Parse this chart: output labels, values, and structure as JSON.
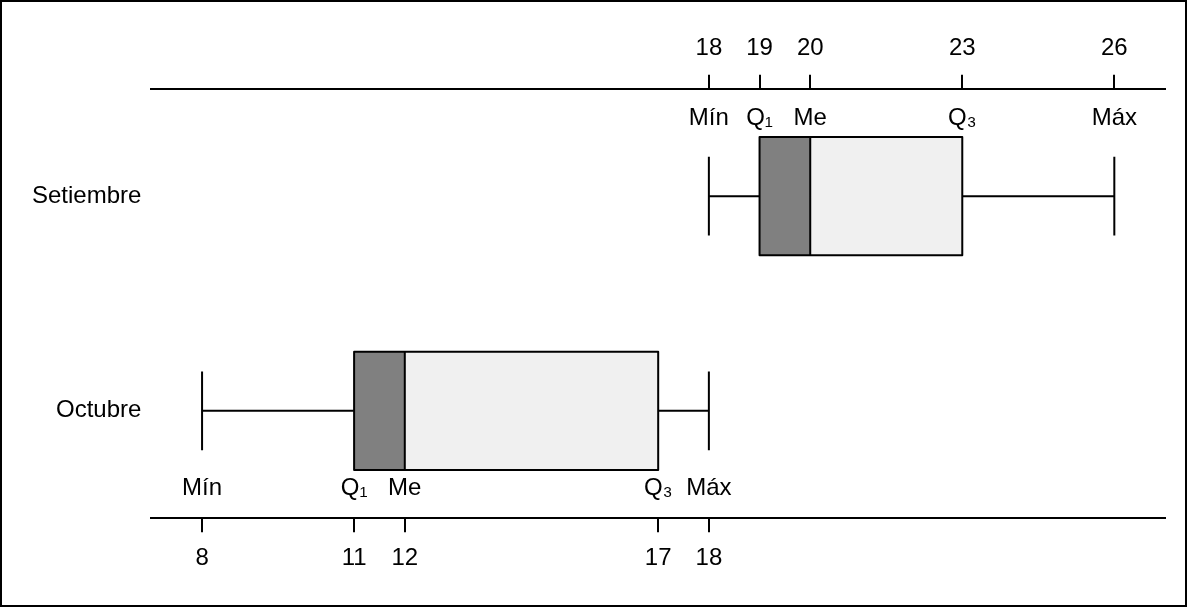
{
  "chart_data": {
    "type": "box",
    "orientation": "horizontal",
    "categories": [
      "Setiembre",
      "Octubre"
    ],
    "series": [
      {
        "colors": [
          "#808080",
          "#f0f0f0"
        ],
        "boxes": [
          {
            "low": 18,
            "q1": 19,
            "median": 20,
            "q3": 23,
            "high": 26
          },
          {
            "low": 8,
            "q1": 11,
            "median": 12,
            "q3": 17,
            "high": 18
          }
        ]
      }
    ],
    "xlim": [
      7,
      27
    ],
    "xticks": [
      8,
      11,
      12,
      17,
      18
    ],
    "x2lim": [
      7,
      27
    ],
    "x2ticks": [
      18,
      19,
      20,
      23,
      26
    ],
    "grid": false,
    "legend": false,
    "annotations": [
      {
        "text": "Mín",
        "x": 18,
        "y": "Setiembre"
      },
      {
        "text": "Q₁",
        "x": 19,
        "y": "Setiembre"
      },
      {
        "text": "Me",
        "x": 20,
        "y": "Setiembre"
      },
      {
        "text": "Q₃",
        "x": 23,
        "y": "Setiembre"
      },
      {
        "text": "Máx",
        "x": 26,
        "y": "Setiembre"
      },
      {
        "text": "Mín",
        "x": 8,
        "y": "Octubre"
      },
      {
        "text": "Q₁",
        "x": 11,
        "y": "Octubre"
      },
      {
        "text": "Me",
        "x": 12,
        "y": "Octubre"
      },
      {
        "text": "Q₃",
        "x": 17,
        "y": "Octubre"
      },
      {
        "text": "Máx",
        "x": 18,
        "y": "Octubre"
      }
    ]
  }
}
